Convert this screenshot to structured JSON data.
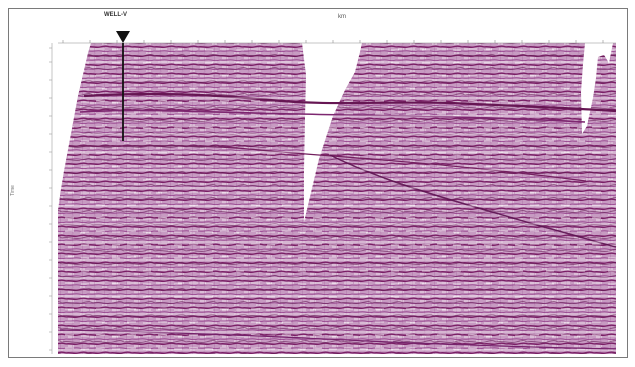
{
  "figure": {
    "well_marker": {
      "label": "WELL-V"
    },
    "axis_title": "km",
    "ylabel": "Time",
    "colors": {
      "trace_dark": "#7a1f66",
      "trace_mid": "#a85a9e",
      "trace_light": "#d7b4cf",
      "background": "#ffffff",
      "grid": "#e6e6e6"
    }
  }
}
